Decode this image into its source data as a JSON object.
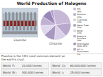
{
  "chart_data": {
    "type": "pie",
    "title": "World Production of Halogens",
    "categories": [
      "PVC\n26%",
      "Solvents\n15%",
      "Ti Dioxide\n13%",
      "Water Treat.\n12%",
      "Other\n11%",
      "Bleach &\nDisinfect.\n10%",
      "Chlorinated\nCpds 10%",
      "HCl &\nChlorinates\n3%"
    ],
    "values": [
      26,
      15,
      13,
      12,
      11,
      10,
      10,
      3
    ],
    "colors": [
      "#c8b8d8",
      "#b8a8cc",
      "#d8d0e8",
      "#a898c0",
      "#e0d8ec",
      "#c0b0d4",
      "#9888b8",
      "#b0a0c8"
    ],
    "subtitle": [
      "Fluorine is the 13th most common element on",
      "the earth's crust."
    ],
    "annotations": [
      "Fluorine",
      "Chlorine"
    ],
    "table": [
      [
        "World  F₂",
        "20,000 tonnes"
      ],
      [
        "World  Br₂",
        "500,000 tonnes"
      ],
      [
        "World  Cl₂",
        "60,000,000 tonnes"
      ],
      [
        "World  I₂",
        "25,000 tonnes"
      ]
    ]
  }
}
